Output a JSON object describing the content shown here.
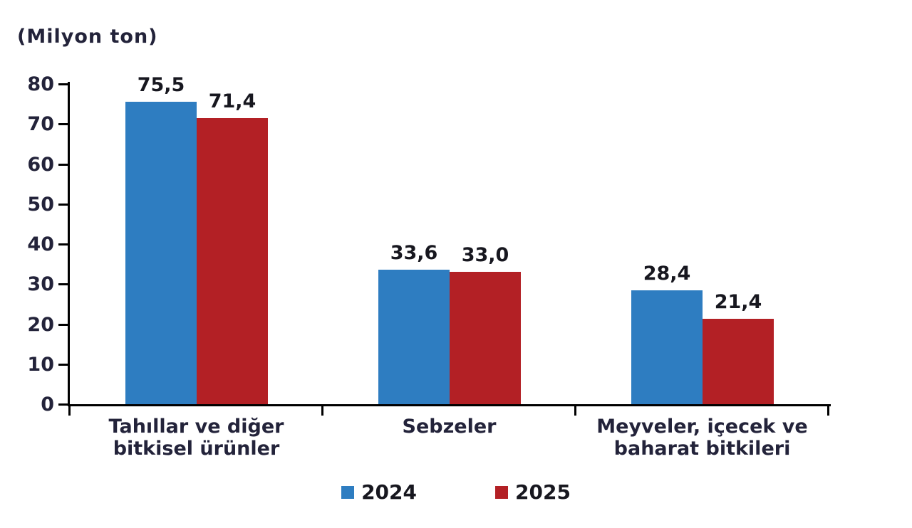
{
  "chart_data": {
    "type": "bar",
    "title": "(Milyon ton)",
    "categories": [
      "Tahıllar ve diğer bitkisel ürünler",
      "Sebzeler",
      "Meyveler, içecek ve baharat bitkileri"
    ],
    "series": [
      {
        "name": "2024",
        "color": "#2E7DC1",
        "values": [
          75.5,
          33.6,
          28.4
        ],
        "labels": [
          "75,5",
          "33,6",
          "28,4"
        ]
      },
      {
        "name": "2025",
        "color": "#B32025",
        "values": [
          71.4,
          33.0,
          21.4
        ],
        "labels": [
          "71,4",
          "33,0",
          "21,4"
        ]
      }
    ],
    "ylim": [
      0,
      80
    ],
    "yticks": [
      0,
      10,
      20,
      30,
      40,
      50,
      60,
      70,
      80
    ],
    "ytick_labels": [
      "0",
      "10",
      "20",
      "30",
      "40",
      "50",
      "60",
      "70",
      "80"
    ],
    "legend_position": "bottom",
    "grid": false
  }
}
